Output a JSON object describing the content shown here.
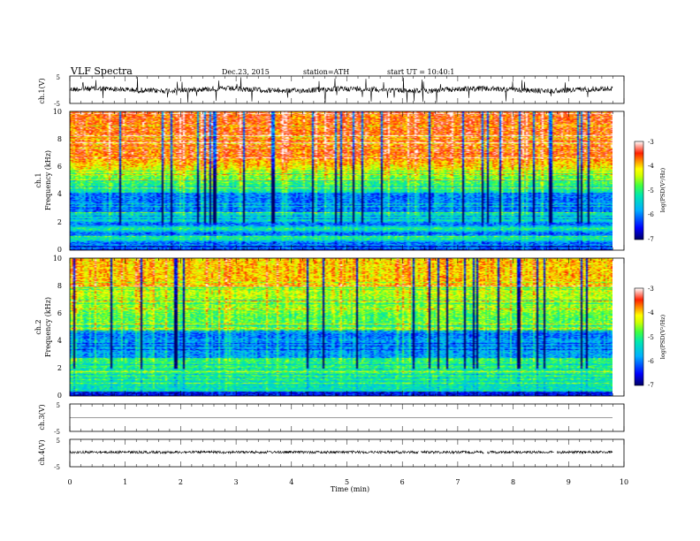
{
  "header": {
    "title": "VLF  Spectra",
    "date": "Dec.23, 2015",
    "station": "station=ATH",
    "start": "start  UT  =    10:40:1"
  },
  "chart_data": [
    {
      "type": "line",
      "name": "ch1-voltage",
      "ylabel": "ch.1(V)",
      "ylim": [
        -5,
        5
      ],
      "yticks": [
        "5",
        "-5"
      ],
      "xlim": [
        0,
        10
      ]
    },
    {
      "type": "heatmap",
      "name": "ch1-spectrogram",
      "ylabel_channel": "ch.1",
      "ylabel": "Frequency  (kHz)",
      "ylim": [
        0,
        10
      ],
      "yticks": [
        "0",
        "2",
        "4",
        "6",
        "8",
        "10"
      ],
      "xlim": [
        0,
        9.8
      ],
      "colorbar": {
        "label": "log(PSD(V²/Hz)",
        "ticks": [
          "-3",
          "-4",
          "-5",
          "-6",
          "-7"
        ],
        "range": [
          -7,
          -3
        ]
      }
    },
    {
      "type": "heatmap",
      "name": "ch2-spectrogram",
      "ylabel_channel": "ch.2",
      "ylabel": "Frequency  (kHz)",
      "ylim": [
        0,
        10
      ],
      "yticks": [
        "0",
        "2",
        "4",
        "6",
        "8",
        "10"
      ],
      "xlim": [
        0,
        9.8
      ],
      "colorbar": {
        "label": "log(PSD(V²/Hz)",
        "ticks": [
          "-3",
          "-4",
          "-5",
          "-6",
          "-7"
        ],
        "range": [
          -7,
          -3
        ]
      }
    },
    {
      "type": "line",
      "name": "ch3-voltage",
      "ylabel": "ch.3(V)",
      "ylim": [
        -5,
        5
      ],
      "yticks": [
        "5",
        "-5"
      ]
    },
    {
      "type": "line",
      "name": "ch4-voltage",
      "ylabel": "ch.4(V)",
      "ylim": [
        -5,
        5
      ],
      "yticks": [
        "5",
        "-5"
      ]
    }
  ],
  "xaxis": {
    "label": "Time  (min)",
    "ticks": [
      "0",
      "1",
      "2",
      "3",
      "4",
      "5",
      "6",
      "7",
      "8",
      "9",
      "10"
    ],
    "range": [
      0,
      10
    ]
  },
  "colors": {
    "scale": [
      "#000066",
      "#0000ff",
      "#00a0ff",
      "#00e0c0",
      "#40ff40",
      "#c0ff00",
      "#ffff00",
      "#ffa000",
      "#ff2000",
      "#ffffff"
    ]
  }
}
